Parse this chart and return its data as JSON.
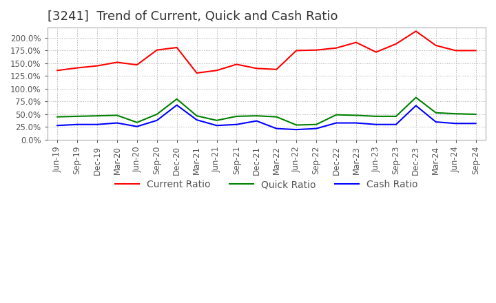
{
  "title": "[3241]  Trend of Current, Quick and Cash Ratio",
  "x_labels": [
    "Jun-19",
    "Sep-19",
    "Dec-19",
    "Mar-20",
    "Jun-20",
    "Sep-20",
    "Dec-20",
    "Mar-21",
    "Jun-21",
    "Sep-21",
    "Dec-21",
    "Mar-22",
    "Jun-22",
    "Sep-22",
    "Dec-22",
    "Mar-23",
    "Jun-23",
    "Sep-23",
    "Dec-23",
    "Mar-24",
    "Jun-24",
    "Sep-24"
  ],
  "current_ratio": [
    136,
    141,
    145,
    152,
    147,
    176,
    181,
    131,
    136,
    148,
    140,
    138,
    175,
    176,
    180,
    191,
    172,
    188,
    213,
    185,
    175,
    175
  ],
  "quick_ratio": [
    45,
    46,
    47,
    48,
    34,
    50,
    80,
    47,
    38,
    46,
    47,
    45,
    29,
    30,
    49,
    48,
    46,
    46,
    83,
    53,
    51,
    50
  ],
  "cash_ratio": [
    28,
    30,
    30,
    33,
    26,
    38,
    68,
    39,
    28,
    30,
    37,
    22,
    20,
    22,
    33,
    33,
    30,
    30,
    67,
    35,
    32,
    32
  ],
  "ylim": [
    0,
    220
  ],
  "yticks": [
    0,
    25,
    50,
    75,
    100,
    125,
    150,
    175,
    200
  ],
  "current_color": "#ff0000",
  "quick_color": "#008000",
  "cash_color": "#0000ff",
  "bg_color": "#ffffff",
  "plot_bg_color": "#ffffff",
  "grid_color": "#aaaaaa",
  "title_fontsize": 13,
  "legend_fontsize": 10,
  "tick_fontsize": 8.5
}
